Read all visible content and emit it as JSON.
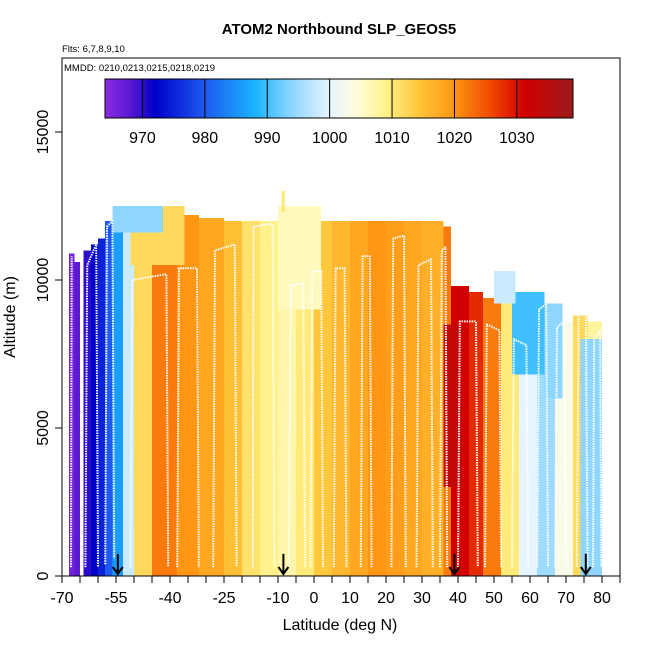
{
  "chart_data": {
    "type": "heatmap",
    "title": "ATOM2 Northbound SLP_GEOS5",
    "subtitle_flights": "Flts: 6,7,8,9,10",
    "subtitle_dates": "MMDD: 0210,0213,0215,0218,0219",
    "xlabel": "Latitude (deg N)",
    "ylabel": "Altitude (m)",
    "xlim": [
      -70,
      85
    ],
    "ylim": [
      0,
      17500
    ],
    "x_ticks": [
      {
        "v": -70,
        "label": "-70"
      },
      {
        "v": -55,
        "label": "-55"
      },
      {
        "v": -40,
        "label": "-40"
      },
      {
        "v": -25,
        "label": "-25"
      },
      {
        "v": -10,
        "label": "-10"
      },
      {
        "v": 0,
        "label": "0"
      },
      {
        "v": 10,
        "label": "10"
      },
      {
        "v": 20,
        "label": "20"
      },
      {
        "v": 30,
        "label": "30"
      },
      {
        "v": 40,
        "label": "40"
      },
      {
        "v": 50,
        "label": "50"
      },
      {
        "v": 60,
        "label": "60"
      },
      {
        "v": 70,
        "label": "70"
      },
      {
        "v": 80,
        "label": "80"
      }
    ],
    "x_minor_ticks": [
      -65,
      -60,
      -50,
      -45,
      -35,
      -30,
      -20,
      -15,
      -5,
      5,
      15,
      25,
      35,
      45,
      55,
      65,
      75,
      85
    ],
    "y_ticks": [
      {
        "v": 0,
        "label": "0"
      },
      {
        "v": 5000,
        "label": "5000"
      },
      {
        "v": 10000,
        "label": "10000"
      },
      {
        "v": 15000,
        "label": "15000"
      }
    ],
    "colorbar": {
      "min": 964,
      "max": 1039,
      "ticks": [
        {
          "v": 970,
          "label": "970"
        },
        {
          "v": 980,
          "label": "980"
        },
        {
          "v": 990,
          "label": "990"
        },
        {
          "v": 1000,
          "label": "1000"
        },
        {
          "v": 1010,
          "label": "1010"
        },
        {
          "v": 1020,
          "label": "1020"
        },
        {
          "v": 1030,
          "label": "1030"
        }
      ],
      "stops": [
        {
          "v": 964,
          "c": "#8a2be2"
        },
        {
          "v": 968,
          "c": "#5a1ad2"
        },
        {
          "v": 972,
          "c": "#0000c8"
        },
        {
          "v": 980,
          "c": "#1e5af0"
        },
        {
          "v": 988,
          "c": "#19b4ff"
        },
        {
          "v": 994,
          "c": "#8fd6ff"
        },
        {
          "v": 1000,
          "c": "#e6f4ff"
        },
        {
          "v": 1004,
          "c": "#fffde0"
        },
        {
          "v": 1009,
          "c": "#fff28a"
        },
        {
          "v": 1014,
          "c": "#ffc83c"
        },
        {
          "v": 1020,
          "c": "#ff9614"
        },
        {
          "v": 1026,
          "c": "#f04600"
        },
        {
          "v": 1031,
          "c": "#d20000"
        },
        {
          "v": 1039,
          "c": "#9b1a1a"
        }
      ]
    },
    "curtain": [
      {
        "x0": -68,
        "x1": -66.5,
        "top": 10900,
        "slp": 966
      },
      {
        "x0": -66.5,
        "x1": -65,
        "top": 10600,
        "slp": 968
      },
      {
        "x0": -64,
        "x1": -62,
        "top": 11000,
        "slp": 970
      },
      {
        "x0": -62,
        "x1": -60,
        "top": 11200,
        "slp": 972
      },
      {
        "x0": -60,
        "x1": -58,
        "top": 11400,
        "slp": 975
      },
      {
        "x0": -58,
        "x1": -56,
        "top": 12000,
        "slp": 980
      },
      {
        "x0": -56,
        "x1": -53,
        "top": 12500,
        "slp": 986
      },
      {
        "x0": -53,
        "x1": -50,
        "top": 12500,
        "slp": 998
      },
      {
        "x0": -50,
        "x1": -45,
        "top": 12300,
        "slp": 1012
      },
      {
        "x0": -45,
        "x1": -38,
        "top": 12300,
        "slp": 1022
      },
      {
        "x0": -38,
        "x1": -32,
        "top": 12200,
        "slp": 1020
      },
      {
        "x0": -32,
        "x1": -25,
        "top": 12100,
        "slp": 1018
      },
      {
        "x0": -25,
        "x1": -20,
        "top": 12000,
        "slp": 1015
      },
      {
        "x0": -20,
        "x1": -15,
        "top": 12000,
        "slp": 1011
      },
      {
        "x0": -15,
        "x1": -10,
        "top": 12000,
        "slp": 1009
      },
      {
        "x0": -10,
        "x1": -5,
        "top": 12100,
        "slp": 1007
      },
      {
        "x0": -5,
        "x1": 0,
        "top": 12000,
        "slp": 1010
      },
      {
        "x0": 0,
        "x1": 5,
        "top": 12000,
        "slp": 1014
      },
      {
        "x0": 5,
        "x1": 10,
        "top": 12000,
        "slp": 1016
      },
      {
        "x0": 10,
        "x1": 15,
        "top": 12000,
        "slp": 1018
      },
      {
        "x0": 15,
        "x1": 20,
        "top": 12000,
        "slp": 1020
      },
      {
        "x0": 20,
        "x1": 25,
        "top": 12000,
        "slp": 1019
      },
      {
        "x0": 25,
        "x1": 30,
        "top": 12000,
        "slp": 1018
      },
      {
        "x0": 30,
        "x1": 36,
        "top": 12000,
        "slp": 1017
      },
      {
        "x0": 36,
        "x1": 38,
        "top": 11800,
        "slp": 1022
      },
      {
        "x0": 38,
        "x1": 43,
        "top": 9800,
        "slp": 1031
      },
      {
        "x0": 43,
        "x1": 47,
        "top": 9600,
        "slp": 1028
      },
      {
        "x0": 47,
        "x1": 52,
        "top": 9400,
        "slp": 1022
      },
      {
        "x0": 52,
        "x1": 57,
        "top": 9300,
        "slp": 1010
      },
      {
        "x0": 57,
        "x1": 62,
        "top": 9000,
        "slp": 1000
      },
      {
        "x0": 62,
        "x1": 67,
        "top": 8800,
        "slp": 995
      },
      {
        "x0": 67,
        "x1": 72,
        "top": 8600,
        "slp": 1003
      },
      {
        "x0": 72,
        "x1": 76,
        "top": 8800,
        "slp": 1012
      },
      {
        "x0": 76,
        "x1": 80,
        "top": 8600,
        "slp": 1008
      }
    ],
    "patches": [
      {
        "x0": -51,
        "x1": -36,
        "y0": 10500,
        "y1": 12500,
        "slp": 1012
      },
      {
        "x0": -56,
        "x1": -42,
        "y0": 11600,
        "y1": 12500,
        "slp": 994
      },
      {
        "x0": -10,
        "x1": 2,
        "y0": 9000,
        "y1": 12500,
        "slp": 1006
      },
      {
        "x0": 36,
        "x1": 41,
        "y0": 3000,
        "y1": 8500,
        "slp": 1033
      },
      {
        "x0": 55,
        "x1": 64,
        "y0": 6800,
        "y1": 9600,
        "slp": 990
      },
      {
        "x0": 64,
        "x1": 69,
        "y0": 6000,
        "y1": 9200,
        "slp": 994
      },
      {
        "x0": 74,
        "x1": 80,
        "y0": 0,
        "y1": 8000,
        "slp": 994
      },
      {
        "x0": 50,
        "x1": 56,
        "y0": 9200,
        "y1": 10300,
        "slp": 998
      },
      {
        "x0": -9,
        "x1": -8,
        "y0": 12300,
        "y1": 13000,
        "slp": 1010
      }
    ],
    "flight_track": [
      [
        [
          -67.5,
          300
        ],
        [
          -67.3,
          10800
        ]
      ],
      [
        [
          -63.5,
          300
        ],
        [
          -63,
          10500
        ],
        [
          -60.5,
          11200
        ],
        [
          -60,
          300
        ]
      ],
      [
        [
          -58,
          400
        ],
        [
          -57.5,
          11800
        ],
        [
          -56,
          12000
        ],
        [
          -55.5,
          600
        ]
      ],
      [
        [
          -51,
          300
        ],
        [
          -50.5,
          10000
        ],
        [
          -41,
          10200
        ],
        [
          -40.5,
          300
        ]
      ],
      [
        [
          -38,
          300
        ],
        [
          -37.5,
          10400
        ],
        [
          -32.5,
          10400
        ],
        [
          -32,
          300
        ]
      ],
      [
        [
          -28,
          300
        ],
        [
          -27.5,
          11000
        ],
        [
          -22,
          11200
        ],
        [
          -21.5,
          300
        ]
      ],
      [
        [
          -17,
          300
        ],
        [
          -16.8,
          11800
        ],
        [
          -11.5,
          11900
        ],
        [
          -11,
          300
        ]
      ],
      [
        [
          -7,
          300
        ],
        [
          -6.5,
          9800
        ],
        [
          -3,
          9900
        ],
        [
          -2.5,
          300
        ]
      ],
      [
        [
          -1,
          300
        ],
        [
          -0.5,
          10300
        ],
        [
          2,
          10300
        ],
        [
          2.5,
          300
        ]
      ],
      [
        [
          5.5,
          300
        ],
        [
          6,
          10400
        ],
        [
          8.5,
          10400
        ],
        [
          9,
          300
        ]
      ],
      [
        [
          13,
          300
        ],
        [
          13.5,
          10800
        ],
        [
          15.5,
          10800
        ],
        [
          16,
          300
        ]
      ],
      [
        [
          21.5,
          300
        ],
        [
          22,
          11400
        ],
        [
          25,
          11500
        ],
        [
          25.5,
          300
        ]
      ],
      [
        [
          28.5,
          300
        ],
        [
          29,
          10500
        ],
        [
          32.5,
          10700
        ],
        [
          33,
          300
        ]
      ],
      [
        [
          35,
          300
        ],
        [
          35.5,
          11000
        ],
        [
          36.5,
          11100
        ],
        [
          37,
          300
        ]
      ],
      [
        [
          40,
          300
        ],
        [
          40.5,
          8600
        ],
        [
          45,
          8600
        ],
        [
          45.5,
          300
        ]
      ],
      [
        [
          47.5,
          300
        ],
        [
          48,
          8500
        ],
        [
          51.5,
          8300
        ],
        [
          52,
          300
        ]
      ],
      [
        [
          55,
          300
        ],
        [
          55.5,
          8000
        ],
        [
          59,
          7800
        ],
        [
          59.5,
          300
        ]
      ],
      [
        [
          62,
          300
        ],
        [
          62.5,
          9000
        ],
        [
          64.5,
          9200
        ],
        [
          65,
          300
        ]
      ],
      [
        [
          67,
          300
        ],
        [
          67.5,
          8400
        ],
        [
          69.5,
          8600
        ],
        [
          70,
          300
        ]
      ],
      [
        [
          73,
          300
        ],
        [
          73.5,
          9200
        ],
        [
          75.5,
          9300
        ],
        [
          76,
          300
        ]
      ],
      [
        [
          77.5,
          300
        ],
        [
          77.8,
          8000
        ],
        [
          79.5,
          8300
        ],
        [
          79.8,
          300
        ]
      ]
    ],
    "arrows": [
      -54.5,
      -8.5,
      39,
      75.5
    ]
  }
}
